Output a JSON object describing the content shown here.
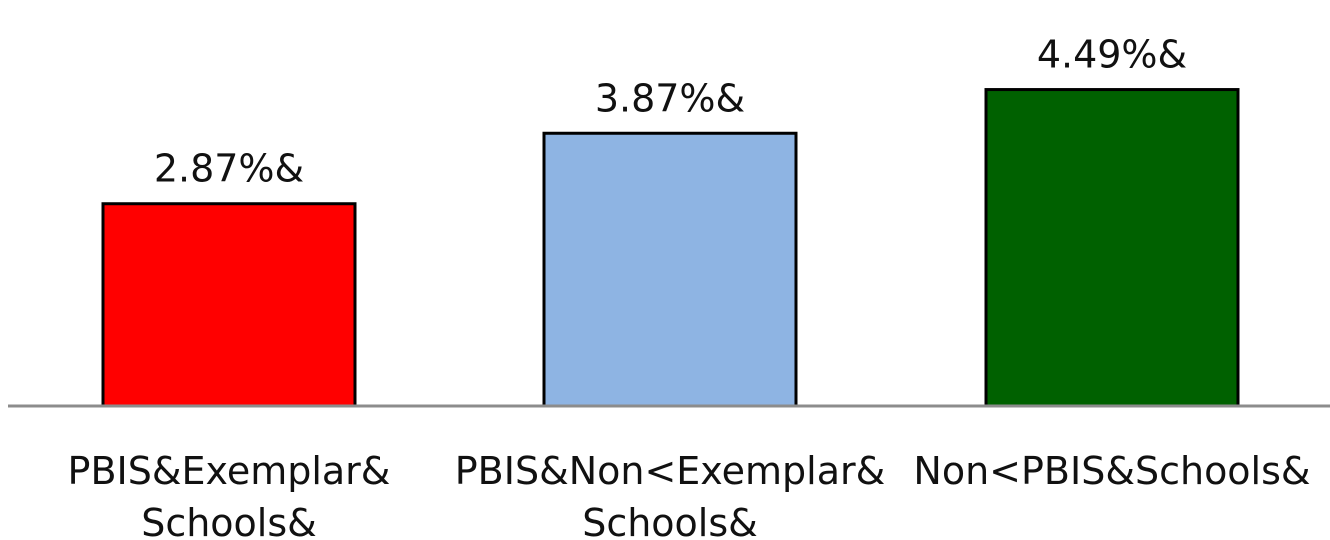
{
  "chart_data": {
    "type": "bar",
    "categories": [
      [
        "PBIS&Exemplar&",
        "Schools&"
      ],
      [
        "PBIS&Non<Exemplar&",
        "Schools&"
      ],
      [
        "Non<PBIS&Schools&"
      ]
    ],
    "values": [
      2.87,
      3.87,
      4.49
    ],
    "data_labels": [
      "2.87%&",
      "3.87%&",
      "4.49%&"
    ],
    "colors": [
      "#ff0000",
      "#8eb4e3",
      "#006100"
    ],
    "axis_color": "#8c8c8c",
    "ylim": [
      0,
      5.25
    ],
    "grid": false,
    "legend": "none"
  }
}
